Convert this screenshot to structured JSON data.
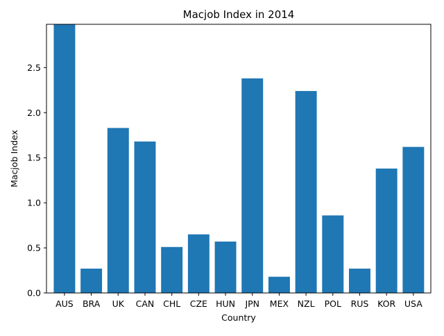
{
  "chart_data": {
    "type": "bar",
    "title": "Macjob Index in 2014",
    "xlabel": "Country",
    "ylabel": "Macjob Index",
    "categories": [
      "AUS",
      "BRA",
      "UK",
      "CAN",
      "CHL",
      "CZE",
      "HUN",
      "JPN",
      "MEX",
      "NZL",
      "POL",
      "RUS",
      "KOR",
      "USA"
    ],
    "values": [
      2.98,
      0.27,
      1.83,
      1.68,
      0.51,
      0.65,
      0.57,
      2.38,
      0.18,
      2.24,
      0.86,
      0.27,
      1.38,
      1.62
    ],
    "ylim": [
      0,
      2.98
    ],
    "yticks": [
      "0.0",
      "0.5",
      "1.0",
      "1.5",
      "2.0",
      "2.5"
    ],
    "bar_color": "#1f77b4",
    "grid": false,
    "legend": "none"
  }
}
